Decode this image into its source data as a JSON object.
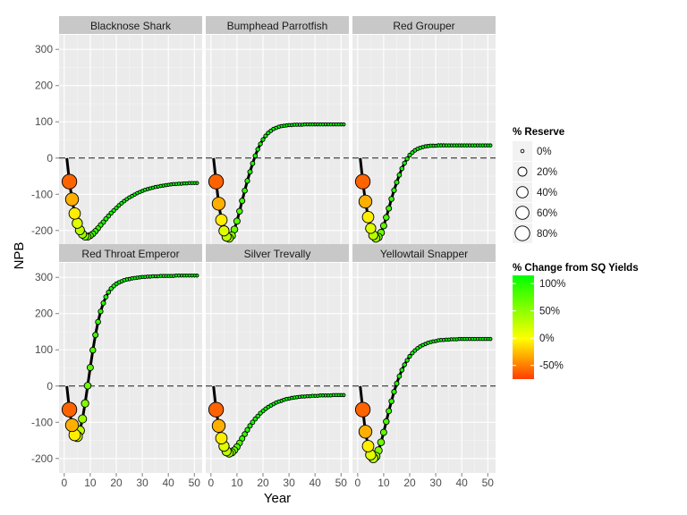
{
  "chart_data": {
    "type": "scatter",
    "title": "",
    "xlabel": "Year",
    "ylabel": "NPB",
    "xlim": [
      -2,
      53
    ],
    "ylim": [
      -240,
      340
    ],
    "x_ticks": [
      0,
      10,
      20,
      30,
      40,
      50
    ],
    "y_ticks": [
      -200,
      -100,
      0,
      100,
      200,
      300
    ],
    "reference_line": {
      "y": 0,
      "style": "dashed"
    },
    "panels": [
      {
        "name": "Blacknose Shark",
        "initial": -60,
        "pts": [
          [
            1,
            0
          ],
          [
            2,
            -65
          ],
          [
            3,
            -114
          ],
          [
            4,
            -153
          ],
          [
            5,
            -180
          ],
          [
            6,
            -199
          ],
          [
            7,
            -210
          ],
          [
            8,
            -216
          ],
          [
            9,
            -217
          ],
          [
            10,
            -214
          ],
          [
            11,
            -209
          ],
          [
            12,
            -202
          ],
          [
            13,
            -194
          ],
          [
            14,
            -185
          ],
          [
            15,
            -177
          ],
          [
            16,
            -168
          ],
          [
            17,
            -160
          ],
          [
            18,
            -152
          ],
          [
            19,
            -145
          ],
          [
            20,
            -138
          ],
          [
            21,
            -131
          ],
          [
            22,
            -125
          ],
          [
            23,
            -119
          ],
          [
            24,
            -114
          ],
          [
            25,
            -109
          ],
          [
            26,
            -105
          ],
          [
            27,
            -101
          ],
          [
            28,
            -97
          ],
          [
            29,
            -94
          ],
          [
            30,
            -91
          ],
          [
            31,
            -88
          ],
          [
            32,
            -86
          ],
          [
            33,
            -84
          ],
          [
            34,
            -82
          ],
          [
            35,
            -80
          ],
          [
            36,
            -79
          ],
          [
            37,
            -77
          ],
          [
            38,
            -76
          ],
          [
            39,
            -75
          ],
          [
            40,
            -74
          ],
          [
            41,
            -73
          ],
          [
            42,
            -72
          ],
          [
            43,
            -72
          ],
          [
            44,
            -71
          ],
          [
            45,
            -71
          ],
          [
            46,
            -70
          ],
          [
            47,
            -70
          ],
          [
            48,
            -69
          ],
          [
            49,
            -69
          ],
          [
            50,
            -69
          ],
          [
            51,
            -69
          ]
        ]
      },
      {
        "name": "Bumphead Parrotfish",
        "initial": -60,
        "pts": [
          [
            1,
            0
          ],
          [
            2,
            -65
          ],
          [
            3,
            -126
          ],
          [
            4,
            -171
          ],
          [
            5,
            -201
          ],
          [
            6,
            -217
          ],
          [
            7,
            -221
          ],
          [
            8,
            -214
          ],
          [
            9,
            -197
          ],
          [
            10,
            -174
          ],
          [
            11,
            -147
          ],
          [
            12,
            -118
          ],
          [
            13,
            -90
          ],
          [
            14,
            -63
          ],
          [
            15,
            -38
          ],
          [
            16,
            -15
          ],
          [
            17,
            6
          ],
          [
            18,
            24
          ],
          [
            19,
            39
          ],
          [
            20,
            51
          ],
          [
            21,
            61
          ],
          [
            22,
            69
          ],
          [
            23,
            75
          ],
          [
            24,
            80
          ],
          [
            25,
            83
          ],
          [
            26,
            86
          ],
          [
            27,
            88
          ],
          [
            28,
            89
          ],
          [
            29,
            90
          ],
          [
            30,
            91
          ],
          [
            31,
            91
          ],
          [
            32,
            92
          ],
          [
            33,
            92
          ],
          [
            34,
            92
          ],
          [
            35,
            92
          ],
          [
            36,
            93
          ],
          [
            37,
            93
          ],
          [
            38,
            93
          ],
          [
            39,
            93
          ],
          [
            40,
            93
          ],
          [
            41,
            93
          ],
          [
            42,
            93
          ],
          [
            43,
            93
          ],
          [
            44,
            93
          ],
          [
            45,
            93
          ],
          [
            46,
            93
          ],
          [
            47,
            93
          ],
          [
            48,
            93
          ],
          [
            49,
            93
          ],
          [
            50,
            93
          ],
          [
            51,
            93
          ]
        ]
      },
      {
        "name": "Red Grouper",
        "initial": -60,
        "pts": [
          [
            1,
            0
          ],
          [
            2,
            -65
          ],
          [
            3,
            -120
          ],
          [
            4,
            -163
          ],
          [
            5,
            -194
          ],
          [
            6,
            -213
          ],
          [
            7,
            -221
          ],
          [
            8,
            -218
          ],
          [
            9,
            -206
          ],
          [
            10,
            -187
          ],
          [
            11,
            -164
          ],
          [
            12,
            -139
          ],
          [
            13,
            -113
          ],
          [
            14,
            -89
          ],
          [
            15,
            -67
          ],
          [
            16,
            -47
          ],
          [
            17,
            -29
          ],
          [
            18,
            -14
          ],
          [
            19,
            -2
          ],
          [
            20,
            8
          ],
          [
            21,
            15
          ],
          [
            22,
            21
          ],
          [
            23,
            25
          ],
          [
            24,
            28
          ],
          [
            25,
            30
          ],
          [
            26,
            32
          ],
          [
            27,
            33
          ],
          [
            28,
            34
          ],
          [
            29,
            34
          ],
          [
            30,
            34
          ],
          [
            31,
            35
          ],
          [
            32,
            35
          ],
          [
            33,
            35
          ],
          [
            34,
            35
          ],
          [
            35,
            35
          ],
          [
            36,
            35
          ],
          [
            37,
            35
          ],
          [
            38,
            35
          ],
          [
            39,
            35
          ],
          [
            40,
            35
          ],
          [
            41,
            35
          ],
          [
            42,
            35
          ],
          [
            43,
            35
          ],
          [
            44,
            35
          ],
          [
            45,
            35
          ],
          [
            46,
            35
          ],
          [
            47,
            35
          ],
          [
            48,
            35
          ],
          [
            49,
            35
          ],
          [
            50,
            35
          ],
          [
            51,
            35
          ]
        ]
      },
      {
        "name": "Red Throat Emperor",
        "initial": -60,
        "pts": [
          [
            1,
            0
          ],
          [
            2,
            -65
          ],
          [
            3,
            -108
          ],
          [
            4,
            -135
          ],
          [
            5,
            -139
          ],
          [
            6,
            -123
          ],
          [
            7,
            -91
          ],
          [
            8,
            -48
          ],
          [
            9,
            1
          ],
          [
            10,
            51
          ],
          [
            11,
            99
          ],
          [
            12,
            141
          ],
          [
            13,
            177
          ],
          [
            14,
            206
          ],
          [
            15,
            229
          ],
          [
            16,
            246
          ],
          [
            17,
            259
          ],
          [
            18,
            269
          ],
          [
            19,
            276
          ],
          [
            20,
            282
          ],
          [
            21,
            286
          ],
          [
            22,
            289
          ],
          [
            23,
            292
          ],
          [
            24,
            294
          ],
          [
            25,
            295
          ],
          [
            26,
            297
          ],
          [
            27,
            298
          ],
          [
            28,
            299
          ],
          [
            29,
            300
          ],
          [
            30,
            301
          ],
          [
            31,
            301
          ],
          [
            32,
            302
          ],
          [
            33,
            302
          ],
          [
            34,
            303
          ],
          [
            35,
            303
          ],
          [
            36,
            303
          ],
          [
            37,
            304
          ],
          [
            38,
            304
          ],
          [
            39,
            304
          ],
          [
            40,
            304
          ],
          [
            41,
            304
          ],
          [
            42,
            304
          ],
          [
            43,
            305
          ],
          [
            44,
            305
          ],
          [
            45,
            305
          ],
          [
            46,
            305
          ],
          [
            47,
            305
          ],
          [
            48,
            305
          ],
          [
            49,
            305
          ],
          [
            50,
            305
          ],
          [
            51,
            305
          ]
        ]
      },
      {
        "name": "Silver Trevally",
        "initial": -60,
        "pts": [
          [
            1,
            0
          ],
          [
            2,
            -65
          ],
          [
            3,
            -110
          ],
          [
            4,
            -144
          ],
          [
            5,
            -166
          ],
          [
            6,
            -180
          ],
          [
            7,
            -185
          ],
          [
            8,
            -183
          ],
          [
            9,
            -177
          ],
          [
            10,
            -168
          ],
          [
            11,
            -157
          ],
          [
            12,
            -145
          ],
          [
            13,
            -133
          ],
          [
            14,
            -121
          ],
          [
            15,
            -110
          ],
          [
            16,
            -100
          ],
          [
            17,
            -91
          ],
          [
            18,
            -83
          ],
          [
            19,
            -75
          ],
          [
            20,
            -69
          ],
          [
            21,
            -63
          ],
          [
            22,
            -58
          ],
          [
            23,
            -54
          ],
          [
            24,
            -50
          ],
          [
            25,
            -46
          ],
          [
            26,
            -43
          ],
          [
            27,
            -41
          ],
          [
            28,
            -38
          ],
          [
            29,
            -36
          ],
          [
            30,
            -35
          ],
          [
            31,
            -33
          ],
          [
            32,
            -32
          ],
          [
            33,
            -31
          ],
          [
            34,
            -30
          ],
          [
            35,
            -29
          ],
          [
            36,
            -29
          ],
          [
            37,
            -28
          ],
          [
            38,
            -28
          ],
          [
            39,
            -27
          ],
          [
            40,
            -27
          ],
          [
            41,
            -27
          ],
          [
            42,
            -26
          ],
          [
            43,
            -26
          ],
          [
            44,
            -26
          ],
          [
            45,
            -26
          ],
          [
            46,
            -26
          ],
          [
            47,
            -25
          ],
          [
            48,
            -25
          ],
          [
            49,
            -25
          ],
          [
            50,
            -25
          ],
          [
            51,
            -25
          ]
        ]
      },
      {
        "name": "Yellowtail Snapper",
        "initial": -60,
        "pts": [
          [
            1,
            0
          ],
          [
            2,
            -65
          ],
          [
            3,
            -126
          ],
          [
            4,
            -166
          ],
          [
            5,
            -190
          ],
          [
            6,
            -199
          ],
          [
            7,
            -194
          ],
          [
            8,
            -178
          ],
          [
            9,
            -155
          ],
          [
            10,
            -128
          ],
          [
            11,
            -98
          ],
          [
            12,
            -69
          ],
          [
            13,
            -42
          ],
          [
            14,
            -16
          ],
          [
            15,
            7
          ],
          [
            16,
            27
          ],
          [
            17,
            44
          ],
          [
            18,
            59
          ],
          [
            19,
            71
          ],
          [
            20,
            82
          ],
          [
            21,
            91
          ],
          [
            22,
            98
          ],
          [
            23,
            104
          ],
          [
            24,
            109
          ],
          [
            25,
            113
          ],
          [
            26,
            116
          ],
          [
            27,
            119
          ],
          [
            28,
            121
          ],
          [
            29,
            123
          ],
          [
            30,
            124
          ],
          [
            31,
            126
          ],
          [
            32,
            127
          ],
          [
            33,
            127
          ],
          [
            34,
            128
          ],
          [
            35,
            128
          ],
          [
            36,
            129
          ],
          [
            37,
            129
          ],
          [
            38,
            129
          ],
          [
            39,
            130
          ],
          [
            40,
            130
          ],
          [
            41,
            130
          ],
          [
            42,
            130
          ],
          [
            43,
            130
          ],
          [
            44,
            130
          ],
          [
            45,
            130
          ],
          [
            46,
            130
          ],
          [
            47,
            130
          ],
          [
            48,
            130
          ],
          [
            49,
            130
          ],
          [
            50,
            130
          ],
          [
            51,
            130
          ]
        ]
      }
    ],
    "size_legend": {
      "title": "% Reserve",
      "entries": [
        {
          "label": "0%",
          "value": 0
        },
        {
          "label": "20%",
          "value": 20
        },
        {
          "label": "40%",
          "value": 40
        },
        {
          "label": "60%",
          "value": 60
        },
        {
          "label": "80%",
          "value": 80
        }
      ]
    },
    "color_legend": {
      "title": "% Change from SQ Yields",
      "range": [
        -75,
        115
      ],
      "ticks": [
        {
          "label": "100%",
          "value": 100
        },
        {
          "label": "50%",
          "value": 50
        },
        {
          "label": "0%",
          "value": 0
        },
        {
          "label": "-50%",
          "value": -50
        }
      ],
      "colors": {
        "low": "#ff3c00",
        "mid": "#ffff00",
        "high": "#00ff00"
      }
    },
    "grid": true,
    "legend_position": "right"
  }
}
